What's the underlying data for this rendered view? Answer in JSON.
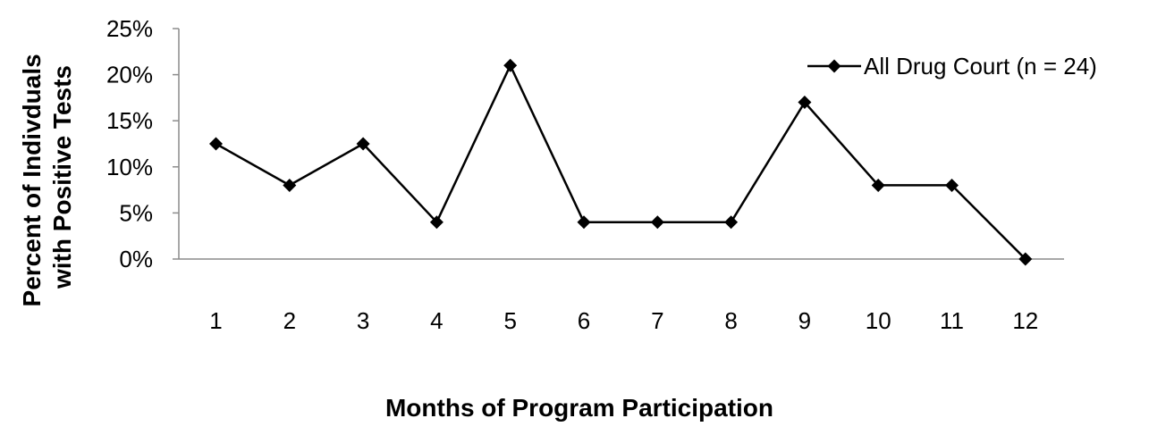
{
  "chart_data": {
    "type": "line",
    "title": "",
    "xlabel": "Months of Program Participation",
    "ylabel": [
      "Percent of Indivduals",
      "with Positive Tests"
    ],
    "categories": [
      "1",
      "2",
      "3",
      "4",
      "5",
      "6",
      "7",
      "8",
      "9",
      "10",
      "11",
      "12"
    ],
    "series": [
      {
        "name": "All Drug Court (n = 24)",
        "values": [
          12.5,
          8.0,
          12.5,
          4.0,
          21.0,
          4.0,
          4.0,
          4.0,
          17.0,
          8.0,
          8.0,
          0.0
        ],
        "color": "#000000",
        "marker": "diamond"
      }
    ],
    "ylim": [
      0,
      25
    ],
    "yticks": [
      0,
      5,
      10,
      15,
      20,
      25
    ],
    "ytick_labels": [
      "0%",
      "5%",
      "10%",
      "15%",
      "20%",
      "25%"
    ],
    "grid": false,
    "legend": {
      "position": "top-right"
    }
  }
}
